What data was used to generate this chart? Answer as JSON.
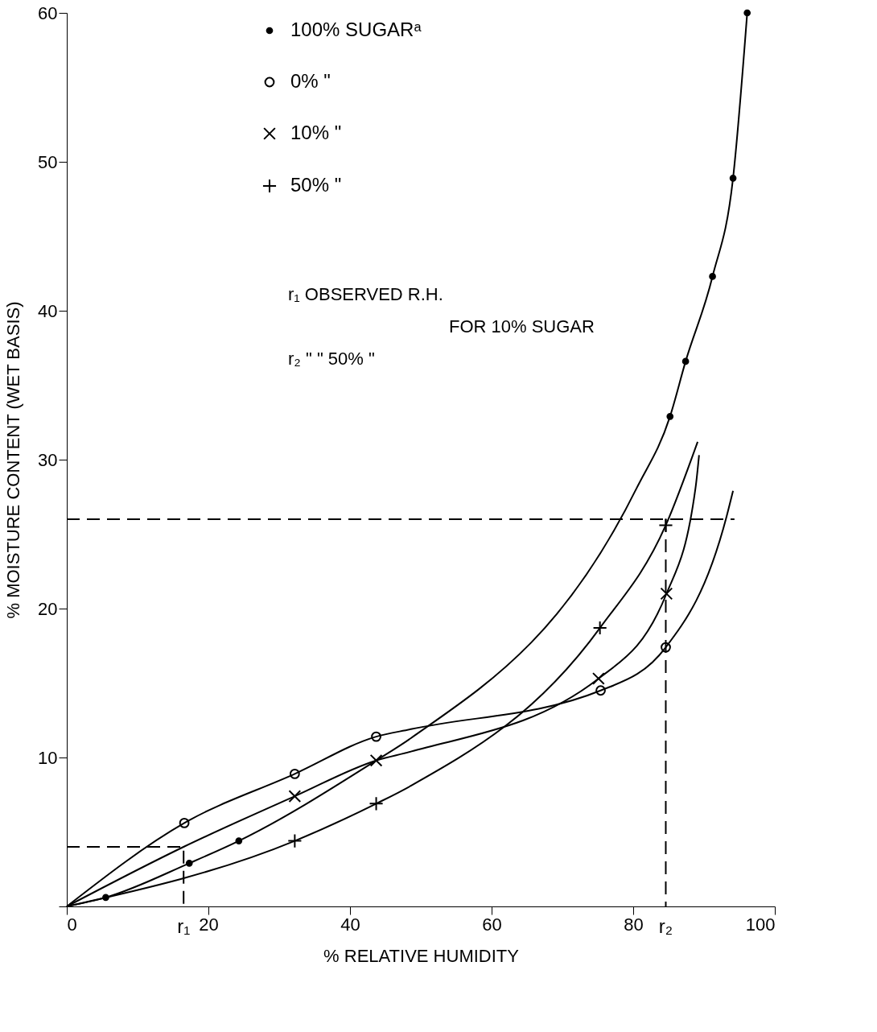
{
  "chart_data": {
    "type": "line",
    "xlabel": "%   RELATIVE   HUMIDITY",
    "ylabel": "%   MOISTURE   CONTENT   (WET   BASIS)",
    "xlim": [
      0,
      100
    ],
    "ylim": [
      0,
      60
    ],
    "xticks": [
      0,
      20,
      40,
      60,
      80,
      100
    ],
    "yticks": [
      {
        "value": 0,
        "label": null
      },
      10,
      20,
      30,
      40,
      50,
      60
    ],
    "grid": false,
    "legend": "top left",
    "series": [
      {
        "color": "#000000",
        "marker": "none",
        "line_style": "solid",
        "x": [
          0,
          5.5,
          17.3,
          24.3,
          43.7,
          48.6,
          80.5,
          85.2,
          87.4,
          91.2,
          94.1,
          96.1
        ],
        "values": [
          0,
          0.6,
          2.9,
          4.4,
          9.8,
          11.3,
          28.1,
          32.9,
          36.6,
          42.3,
          48.9,
          60
        ]
      },
      {
        "color": "#000000",
        "marker": "none",
        "line_style": "solid",
        "x": [
          0,
          16.6,
          32.2,
          43.7,
          48.6,
          75.4,
          84.6,
          93.2,
          94.1
        ],
        "values": [
          0,
          5.6,
          8.9,
          11.4,
          11.9,
          14.5,
          17.4,
          26.2,
          27.9
        ]
      },
      {
        "color": "#000000",
        "marker": "none",
        "line_style": "solid",
        "x": [
          0,
          16.5,
          32.2,
          43.7,
          48.6,
          75.1,
          84.7,
          88.8,
          89.3
        ],
        "values": [
          0,
          4,
          7.4,
          9.8,
          10.4,
          15.3,
          21.0,
          28.1,
          30.3
        ]
      },
      {
        "color": "#000000",
        "marker": "none",
        "line_style": "solid",
        "x": [
          0,
          32.2,
          43.7,
          48.6,
          75.3,
          84.6,
          89.1
        ],
        "values": [
          0,
          4.4,
          6.9,
          8.1,
          18.7,
          25.6,
          31.2
        ]
      },
      {
        "color": "#000000",
        "marker": "none",
        "line_style": "dashed",
        "x": [
          0,
          16.5,
          16.5
        ],
        "values": [
          4,
          4,
          0
        ]
      },
      {
        "color": "#000000",
        "marker": "none",
        "line_style": "dashed",
        "x": [
          0,
          94.3
        ],
        "values": [
          26,
          26
        ]
      },
      {
        "color": "#000000",
        "marker": "none",
        "line_style": "dashed",
        "x": [
          84.6,
          84.6
        ],
        "values": [
          26,
          0
        ]
      },
      {
        "type": "scatter",
        "name": "100%   SUGARᵃ",
        "color": "#000000",
        "marker": "dot",
        "x": [
          5.5,
          17.3,
          24.3,
          85.2,
          87.4,
          91.2,
          94.1,
          96.1
        ],
        "values": [
          0.6,
          2.9,
          4.4,
          32.9,
          36.6,
          42.3,
          48.9,
          60
        ]
      },
      {
        "type": "scatter",
        "name": "0%        \"",
        "color": "#000000",
        "marker": "circle",
        "x": [
          16.6,
          32.2,
          43.7,
          75.4,
          84.6
        ],
        "values": [
          5.6,
          8.9,
          11.4,
          14.5,
          17.4
        ]
      },
      {
        "type": "scatter",
        "name": "10%        \"",
        "color": "#000000",
        "marker": "cross",
        "x": [
          32.2,
          43.7,
          75.1,
          84.7
        ],
        "values": [
          7.4,
          9.8,
          15.3,
          21.0
        ]
      },
      {
        "type": "scatter",
        "name": "50%        \"",
        "color": "#000000",
        "marker": "plus",
        "x": [
          32.2,
          43.7,
          75.3,
          84.6
        ],
        "values": [
          4.4,
          6.9,
          18.7,
          25.6
        ]
      }
    ],
    "annotations": [
      "r₁      OBSERVED R.H.",
      "FOR 10% SUGAR",
      "r₂        \"                 \" 50%       \"",
      {
        "text": "r₁",
        "x": 16.5,
        "y": 0
      },
      {
        "text": "r₂",
        "x": 84.6,
        "y": 0
      }
    ]
  }
}
